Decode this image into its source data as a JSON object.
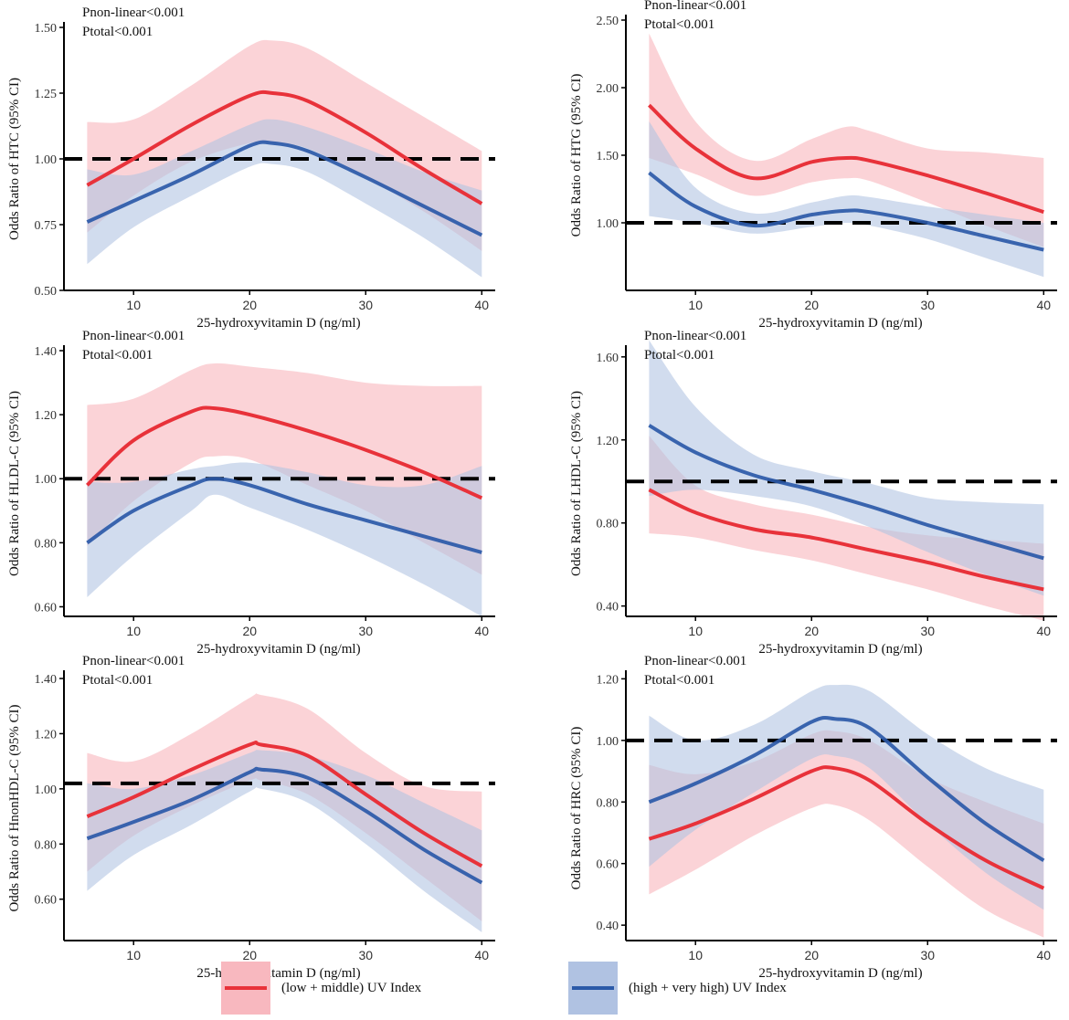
{
  "legend": {
    "low": {
      "label": "(low + middle) UV Index",
      "line_color": "#e8323a",
      "band_color": "#f8b8bf"
    },
    "high": {
      "label": "(high + very high) UV Index",
      "line_color": "#2b59a8",
      "band_color": "#b0c2e2"
    }
  },
  "chart_data": [
    {
      "type": "line",
      "ylabel": "Odds Ratio of HTC (95% CI)",
      "xlabel": "25-hydroxyvitamin D (ng/ml)",
      "annotations": [
        "Pnon-linear<0.001",
        "Ptotal<0.001"
      ],
      "xlim": [
        4,
        41
      ],
      "ylim": [
        0.5,
        1.5
      ],
      "xticks": [
        10,
        20,
        30,
        40
      ],
      "yticks": [
        0.5,
        0.75,
        1.0,
        1.25,
        1.5
      ],
      "ytick_labels": [
        "0.50",
        "0.75",
        "1.00",
        "1.25",
        "1.50"
      ],
      "reference_line": 1.0,
      "x": [
        6,
        10,
        15,
        20,
        22,
        25,
        30,
        35,
        40
      ],
      "series": [
        {
          "name": "(low + middle) UV Index",
          "values": [
            0.9,
            1.0,
            1.13,
            1.24,
            1.25,
            1.22,
            1.1,
            0.96,
            0.83
          ],
          "lower": [
            0.72,
            0.86,
            0.99,
            1.06,
            1.06,
            1.04,
            0.93,
            0.8,
            0.65
          ],
          "upper": [
            1.14,
            1.15,
            1.28,
            1.43,
            1.45,
            1.42,
            1.29,
            1.16,
            1.03
          ]
        },
        {
          "name": "(high + very high) UV Index",
          "values": [
            0.76,
            0.84,
            0.94,
            1.05,
            1.06,
            1.03,
            0.93,
            0.82,
            0.71
          ],
          "lower": [
            0.6,
            0.74,
            0.86,
            0.97,
            0.98,
            0.95,
            0.83,
            0.7,
            0.55
          ],
          "upper": [
            0.96,
            0.94,
            1.03,
            1.13,
            1.15,
            1.12,
            1.04,
            0.95,
            0.88
          ]
        }
      ]
    },
    {
      "type": "line",
      "ylabel": "Odds Ratio of HTG (95% CI)",
      "xlabel": "25-hydroxyvitamin D (ng/ml)",
      "annotations": [
        "Pnon-linear<0.001",
        "Ptotal<0.001"
      ],
      "xlim": [
        4,
        41
      ],
      "ylim": [
        0.5,
        2.5
      ],
      "xticks": [
        10,
        20,
        30,
        40
      ],
      "yticks": [
        1.0,
        1.5,
        2.0,
        2.5
      ],
      "ytick_labels": [
        "1.00",
        "1.50",
        "2.00",
        "2.50"
      ],
      "reference_line": 1.0,
      "x": [
        6,
        10,
        15,
        20,
        23,
        25,
        30,
        35,
        40
      ],
      "series": [
        {
          "name": "(low + middle) UV Index",
          "values": [
            1.87,
            1.55,
            1.33,
            1.45,
            1.48,
            1.46,
            1.35,
            1.22,
            1.08
          ],
          "lower": [
            1.48,
            1.36,
            1.2,
            1.3,
            1.33,
            1.31,
            1.15,
            0.98,
            0.82
          ],
          "upper": [
            2.4,
            1.75,
            1.46,
            1.62,
            1.71,
            1.68,
            1.55,
            1.52,
            1.48
          ]
        },
        {
          "name": "(high + very high) UV Index",
          "values": [
            1.37,
            1.12,
            0.98,
            1.06,
            1.09,
            1.08,
            1.0,
            0.9,
            0.8
          ],
          "lower": [
            1.05,
            1.0,
            0.92,
            0.97,
            1.0,
            0.98,
            0.88,
            0.74,
            0.6
          ],
          "upper": [
            1.75,
            1.26,
            1.07,
            1.15,
            1.2,
            1.19,
            1.12,
            1.06,
            1.0
          ]
        }
      ]
    },
    {
      "type": "line",
      "ylabel": "Odds Ratio of HLDL-C (95% CI)",
      "xlabel": "25-hydroxyvitamin D (ng/ml)",
      "annotations": [
        "Pnon-linear<0.001",
        "Ptotal<0.001"
      ],
      "xlim": [
        4,
        41
      ],
      "ylim": [
        0.57,
        1.4
      ],
      "xticks": [
        10,
        20,
        30,
        40
      ],
      "yticks": [
        0.6,
        0.8,
        1.0,
        1.2,
        1.4
      ],
      "ytick_labels": [
        "0.60",
        "0.80",
        "1.00",
        "1.20",
        "1.40"
      ],
      "reference_line": 1.0,
      "x": [
        6,
        10,
        15,
        17,
        20,
        25,
        30,
        35,
        40
      ],
      "series": [
        {
          "name": "(low + middle) UV Index",
          "values": [
            0.98,
            1.12,
            1.21,
            1.22,
            1.2,
            1.15,
            1.09,
            1.02,
            0.94
          ],
          "lower": [
            0.79,
            0.93,
            1.05,
            1.07,
            1.06,
            0.98,
            0.9,
            0.8,
            0.7
          ],
          "upper": [
            1.23,
            1.25,
            1.34,
            1.36,
            1.35,
            1.33,
            1.3,
            1.29,
            1.29
          ]
        },
        {
          "name": "(high + very high) UV Index",
          "values": [
            0.8,
            0.9,
            0.98,
            1.0,
            0.98,
            0.92,
            0.87,
            0.82,
            0.77
          ],
          "lower": [
            0.63,
            0.76,
            0.9,
            0.95,
            0.91,
            0.84,
            0.76,
            0.67,
            0.57
          ],
          "upper": [
            0.99,
            0.99,
            1.03,
            1.04,
            1.05,
            1.02,
            0.98,
            0.98,
            1.04
          ]
        }
      ]
    },
    {
      "type": "line",
      "ylabel": "Odds Ratio of LHDL-C (95% CI)",
      "xlabel": "25-hydroxyvitamin D (ng/ml)",
      "annotations": [
        "Pnon-linear<0.001",
        "Ptotal<0.001"
      ],
      "xlim": [
        4,
        41
      ],
      "ylim": [
        0.35,
        1.63
      ],
      "xticks": [
        10,
        20,
        30,
        40
      ],
      "yticks": [
        0.4,
        0.8,
        1.2,
        1.6
      ],
      "ytick_labels": [
        "0.40",
        "0.80",
        "1.20",
        "1.60"
      ],
      "reference_line": 1.0,
      "x": [
        6,
        10,
        15,
        20,
        25,
        30,
        35,
        40
      ],
      "series": [
        {
          "name": "(low + middle) UV Index",
          "values": [
            0.96,
            0.85,
            0.77,
            0.73,
            0.67,
            0.61,
            0.54,
            0.48
          ],
          "lower": [
            0.75,
            0.73,
            0.67,
            0.62,
            0.55,
            0.48,
            0.4,
            0.33
          ],
          "upper": [
            1.22,
            0.98,
            0.89,
            0.84,
            0.78,
            0.74,
            0.72,
            0.7
          ]
        },
        {
          "name": "(high + very high) UV Index",
          "values": [
            1.27,
            1.14,
            1.03,
            0.96,
            0.88,
            0.79,
            0.71,
            0.63
          ],
          "lower": [
            0.93,
            0.96,
            0.93,
            0.88,
            0.78,
            0.66,
            0.55,
            0.45
          ],
          "upper": [
            1.68,
            1.36,
            1.13,
            1.05,
            0.99,
            0.92,
            0.9,
            0.89
          ]
        }
      ]
    },
    {
      "type": "line",
      "ylabel": "Odds Ratio of HnonHDL-C (95% CI)",
      "xlabel": "25-hydroxyvitamin D (ng/ml)",
      "annotations": [
        "Pnon-linear<0.001",
        "Ptotal<0.001"
      ],
      "xlim": [
        4,
        41
      ],
      "ylim": [
        0.45,
        1.41
      ],
      "xticks": [
        10,
        20,
        30,
        40
      ],
      "yticks": [
        0.6,
        0.8,
        1.0,
        1.2,
        1.4
      ],
      "ytick_labels": [
        "0.60",
        "0.80",
        "1.00",
        "1.20",
        "1.40"
      ],
      "reference_line": 1.02,
      "x": [
        6,
        10,
        15,
        20,
        21,
        25,
        30,
        35,
        40
      ],
      "series": [
        {
          "name": "(low + middle) UV Index",
          "values": [
            0.9,
            0.97,
            1.07,
            1.16,
            1.16,
            1.12,
            0.98,
            0.84,
            0.72
          ],
          "lower": [
            0.7,
            0.83,
            0.94,
            1.03,
            1.03,
            0.98,
            0.84,
            0.68,
            0.52
          ],
          "upper": [
            1.13,
            1.1,
            1.2,
            1.33,
            1.34,
            1.29,
            1.13,
            1.01,
            0.99
          ]
        },
        {
          "name": "(high + very high) UV Index",
          "values": [
            0.82,
            0.88,
            0.96,
            1.06,
            1.07,
            1.04,
            0.92,
            0.78,
            0.66
          ],
          "lower": [
            0.63,
            0.76,
            0.87,
            0.99,
            1.0,
            0.95,
            0.8,
            0.63,
            0.48
          ],
          "upper": [
            1.02,
            1.0,
            1.05,
            1.13,
            1.14,
            1.12,
            1.05,
            0.95,
            0.85
          ]
        }
      ]
    },
    {
      "type": "line",
      "ylabel": "Odds Ratio of HRC (95% CI)",
      "xlabel": "25-hydroxyvitamin D (ng/ml)",
      "annotations": [
        "Pnon-linear<0.001",
        "Ptotal<0.001"
      ],
      "xlim": [
        4,
        41
      ],
      "ylim": [
        0.35,
        1.21
      ],
      "xticks": [
        10,
        20,
        30,
        40
      ],
      "yticks": [
        0.4,
        0.6,
        0.8,
        1.0,
        1.2
      ],
      "ytick_labels": [
        "0.40",
        "0.60",
        "0.80",
        "1.00",
        "1.20"
      ],
      "reference_line": 1.0,
      "x": [
        6,
        10,
        15,
        20,
        22,
        25,
        30,
        35,
        40
      ],
      "series": [
        {
          "name": "(low + middle) UV Index",
          "values": [
            0.68,
            0.73,
            0.81,
            0.9,
            0.91,
            0.87,
            0.73,
            0.61,
            0.52
          ],
          "lower": [
            0.5,
            0.58,
            0.69,
            0.78,
            0.79,
            0.74,
            0.59,
            0.45,
            0.36
          ],
          "upper": [
            0.92,
            0.89,
            0.93,
            1.02,
            1.03,
            1.0,
            0.88,
            0.8,
            0.73
          ]
        },
        {
          "name": "(high + very high) UV Index",
          "values": [
            0.8,
            0.86,
            0.95,
            1.06,
            1.07,
            1.04,
            0.88,
            0.73,
            0.61
          ],
          "lower": [
            0.59,
            0.71,
            0.83,
            0.94,
            0.95,
            0.91,
            0.73,
            0.57,
            0.45
          ],
          "upper": [
            1.08,
            1.0,
            1.05,
            1.16,
            1.18,
            1.16,
            1.02,
            0.91,
            0.84
          ]
        }
      ]
    }
  ]
}
